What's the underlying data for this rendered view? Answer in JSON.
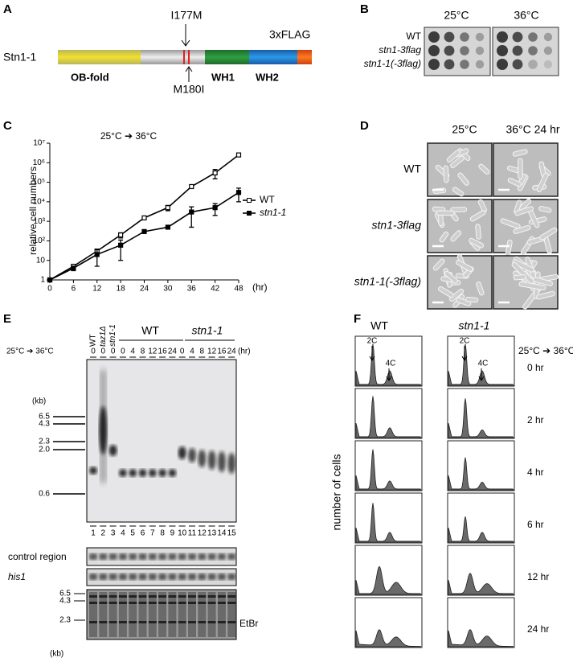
{
  "panel_a": {
    "letter": "A",
    "protein": "Stn1-1",
    "mutation_upper": "I177M",
    "mutation_lower": "M180I",
    "tag": "3xFLAG",
    "domains": [
      "OB-fold",
      "WH1",
      "WH2"
    ]
  },
  "panel_b": {
    "letter": "B",
    "temperatures": [
      "25°C",
      "36°C"
    ],
    "strains": [
      "WT",
      "stn1-3flag",
      "stn1-1(-3flag)"
    ]
  },
  "chart_data": {
    "type": "line",
    "panel": "C",
    "title": "25°C ➔ 36°C",
    "x_label": "(hr)",
    "y_label": "relative cell numbers",
    "x": [
      0,
      6,
      12,
      18,
      24,
      30,
      36,
      42,
      48
    ],
    "xlim": [
      0,
      48
    ],
    "xticks": [
      0,
      6,
      12,
      18,
      24,
      30,
      36,
      42,
      48
    ],
    "ylim": [
      1,
      10000000
    ],
    "yticks": [
      1,
      10,
      {
        "value": 100,
        "label": "10²"
      },
      {
        "value": 1000,
        "label": "10³"
      },
      {
        "value": 10000,
        "label": "10⁴"
      },
      {
        "value": 100000,
        "label": "10⁵"
      },
      {
        "value": 1000000,
        "label": "10⁶"
      },
      {
        "value": 10000000,
        "label": "10⁷"
      }
    ],
    "log_scale": true,
    "legend": "right",
    "series": [
      {
        "name": "WT",
        "color": "#000000",
        "marker": "open",
        "values": [
          1,
          5,
          30,
          200,
          1500,
          5000,
          60000,
          300000,
          2500000
        ],
        "errors": [
          0,
          1,
          8,
          60,
          0,
          1500,
          0,
          150000,
          0
        ]
      },
      {
        "name": "stn1-1",
        "color": "#000000",
        "marker": "filled",
        "values": [
          1,
          4,
          20,
          60,
          300,
          500,
          3000,
          5000,
          30000
        ],
        "errors": [
          0,
          1,
          15,
          50,
          0,
          0,
          2500,
          3000,
          20000
        ]
      }
    ]
  },
  "panel_d": {
    "letter": "D",
    "conditions": [
      "25°C",
      "36°C 24 hr"
    ],
    "strains": [
      "WT",
      "stn1-3flag",
      "stn1-1(-3flag)"
    ]
  },
  "panel_e": {
    "letter": "E",
    "shift": "25°C ➔ 36°C",
    "unit": "(hr)",
    "lane_strains": [
      "WT",
      "taz1Δ",
      "stn1-1"
    ],
    "times": [
      0,
      0,
      0,
      0,
      4,
      8,
      12,
      16,
      24,
      0,
      4,
      8,
      12,
      16,
      24
    ],
    "groups": [
      "WT",
      "stn1-1"
    ],
    "size_unit": "(kb)",
    "markers": [
      "6.5",
      "4.3",
      "2.3",
      "2.0",
      "0.6"
    ],
    "lanes": [
      1,
      2,
      3,
      4,
      5,
      6,
      7,
      8,
      9,
      10,
      11,
      12,
      13,
      14,
      15
    ],
    "probes": [
      "control region",
      "his1"
    ],
    "stain": "EtBr",
    "stain_markers": [
      "6.5",
      "4.3",
      "2.3"
    ],
    "stain_unit": "(kb)"
  },
  "panel_f": {
    "letter": "F",
    "strains": [
      "WT",
      "stn1-1"
    ],
    "shift": "25°C ➔ 36°C",
    "peaks": [
      "2C",
      "4C"
    ],
    "times": [
      "0 hr",
      "2 hr",
      "4 hr",
      "6 hr",
      "12 hr",
      "24 hr"
    ],
    "y_label": "number of cells"
  }
}
